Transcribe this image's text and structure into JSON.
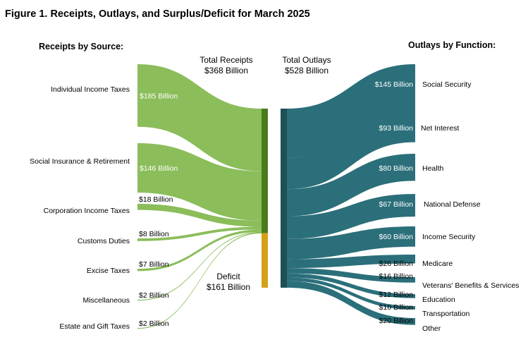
{
  "chart_data": {
    "type": "sankey",
    "title": "Figure 1. Receipts, Outlays, and Surplus/Deficit for March 2025",
    "receipts_heading": "Receipts by Source:",
    "outlays_heading": "Outlays by Function:",
    "total_receipts": {
      "label": "Total Receipts",
      "value_text": "$368 Billion",
      "value": 368
    },
    "total_outlays": {
      "label": "Total Outlays",
      "value_text": "$528 Billion",
      "value": 528
    },
    "deficit": {
      "label": "Deficit",
      "value_text": "$161 Billion",
      "value": 161
    },
    "units": "Billion dollars",
    "receipts": [
      {
        "name": "Individual Income Taxes",
        "value": 185,
        "value_text": "$185 Billion"
      },
      {
        "name": "Social Insurance & Retirement",
        "value": 146,
        "value_text": "$146 Billion"
      },
      {
        "name": "Corporation Income Taxes",
        "value": 18,
        "value_text": "$18 Billion"
      },
      {
        "name": "Customs Duties",
        "value": 8,
        "value_text": "$8 Billion"
      },
      {
        "name": "Excise Taxes",
        "value": 7,
        "value_text": "$7 Billion"
      },
      {
        "name": "Miscellaneous",
        "value": 2,
        "value_text": "$2 Billion"
      },
      {
        "name": "Estate and Gift Taxes",
        "value": 2,
        "value_text": "$2 Billion"
      }
    ],
    "outlays": [
      {
        "name": "Social Security",
        "value": 145,
        "value_text": "$145 Billion"
      },
      {
        "name": "Net Interest",
        "value": 93,
        "value_text": "$93 Billion"
      },
      {
        "name": "Health",
        "value": 80,
        "value_text": "$80 Billion"
      },
      {
        "name": "National Defense",
        "value": 67,
        "value_text": "$67 Billion"
      },
      {
        "name": "Income Security",
        "value": 60,
        "value_text": "$60 Billion"
      },
      {
        "name": "Medicare",
        "value": 26,
        "value_text": "$26 Billion"
      },
      {
        "name": "Veterans' Benefits & Services",
        "value": 16,
        "value_text": "$16 Billion"
      },
      {
        "name": "Education",
        "value": 12,
        "value_text": "$12 Billion"
      },
      {
        "name": "Transportation",
        "value": 10,
        "value_text": "$10 Billion"
      },
      {
        "name": "Other",
        "value": 20,
        "value_text": "$20 Billion"
      }
    ],
    "colors": {
      "receipts": "#8bbd5a",
      "receipts_bar": "#4c7a1c",
      "deficit_bar": "#d4a017",
      "outlays": "#2b6f7a",
      "outlays_bar": "#1f4f58"
    }
  }
}
